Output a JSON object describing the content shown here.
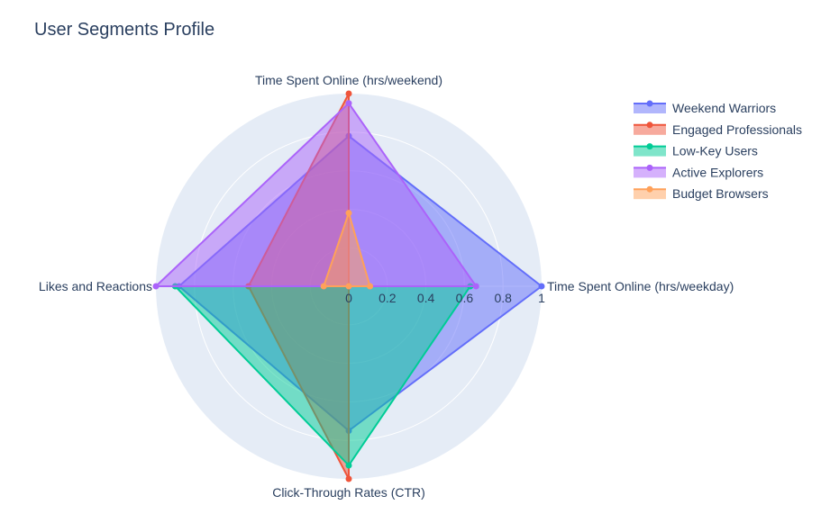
{
  "chart_data": {
    "type": "radar",
    "title": "User Segments Profile",
    "axes": [
      "Time Spent Online (hrs/weekday)",
      "Time Spent Online (hrs/weekend)",
      "Likes and Reactions",
      "Click-Through Rates (CTR)"
    ],
    "radial_range": [
      0,
      1
    ],
    "radial_ticks": [
      "0",
      "0.2",
      "0.4",
      "0.6",
      "0.8",
      "1"
    ],
    "radial_tick_values": [
      0,
      0.2,
      0.4,
      0.6,
      0.8,
      1.0
    ],
    "grid": true,
    "legend_position": "top-right",
    "series": [
      {
        "name": "Weekend Warriors",
        "color": "#636efa",
        "values": [
          1.0,
          0.78,
          0.88,
          0.75
        ]
      },
      {
        "name": "Engaged Professionals",
        "color": "#ef553b",
        "values": [
          0.0,
          1.0,
          0.52,
          1.0
        ]
      },
      {
        "name": "Low-Key Users",
        "color": "#00cc96",
        "values": [
          0.63,
          0.0,
          0.9,
          0.93
        ]
      },
      {
        "name": "Active Explorers",
        "color": "#ab63fa",
        "values": [
          0.66,
          0.95,
          1.0,
          0.0
        ]
      },
      {
        "name": "Budget Browsers",
        "color": "#ffa15a",
        "values": [
          0.11,
          0.38,
          0.13,
          0.0
        ]
      }
    ]
  }
}
